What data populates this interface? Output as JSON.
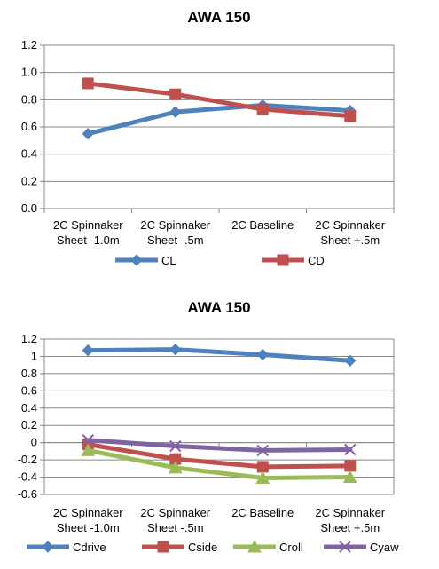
{
  "chart_data": [
    {
      "type": "line",
      "title": "AWA 150",
      "categories": [
        [
          "2C Spinnaker",
          "Sheet -1.0m"
        ],
        [
          "2C Spinnaker",
          "Sheet -.5m"
        ],
        [
          "2C Baseline"
        ],
        [
          "2C Spinnaker",
          "Sheet +.5m"
        ]
      ],
      "ylim": [
        0,
        1.2
      ],
      "yticks": [
        "0.0",
        "0.2",
        "0.4",
        "0.6",
        "0.8",
        "1.0",
        "1.2"
      ],
      "grid": true,
      "legend_position": "bottom",
      "series": [
        {
          "name": "CL",
          "values": [
            0.55,
            0.71,
            0.76,
            0.72
          ],
          "color": "#4F81BD",
          "marker": "diamond"
        },
        {
          "name": "CD",
          "values": [
            0.92,
            0.84,
            0.73,
            0.68
          ],
          "color": "#C0504D",
          "marker": "square"
        }
      ]
    },
    {
      "type": "line",
      "title": "AWA 150",
      "categories": [
        [
          "2C Spinnaker",
          "Sheet -1.0m"
        ],
        [
          "2C Spinnaker",
          "Sheet -.5m"
        ],
        [
          "2C Baseline"
        ],
        [
          "2C Spinnaker",
          "Sheet +.5m"
        ]
      ],
      "ylim": [
        -0.6,
        1.2
      ],
      "yticks": [
        "-0.6",
        "-0.4",
        "-0.2",
        "0",
        "0.2",
        "0.4",
        "0.6",
        "0.8",
        "1",
        "1.2"
      ],
      "grid": true,
      "legend_position": "bottom",
      "series": [
        {
          "name": "Cdrive",
          "values": [
            1.07,
            1.08,
            1.02,
            0.95
          ],
          "color": "#4F81BD",
          "marker": "diamond"
        },
        {
          "name": "Cside",
          "values": [
            -0.02,
            -0.19,
            -0.28,
            -0.27
          ],
          "color": "#C0504D",
          "marker": "square"
        },
        {
          "name": "Croll",
          "values": [
            -0.09,
            -0.29,
            -0.41,
            -0.4
          ],
          "color": "#9BBB59",
          "marker": "triangle"
        },
        {
          "name": "Cyaw",
          "values": [
            0.03,
            -0.04,
            -0.09,
            -0.08
          ],
          "color": "#8064A2",
          "marker": "x"
        }
      ]
    }
  ]
}
